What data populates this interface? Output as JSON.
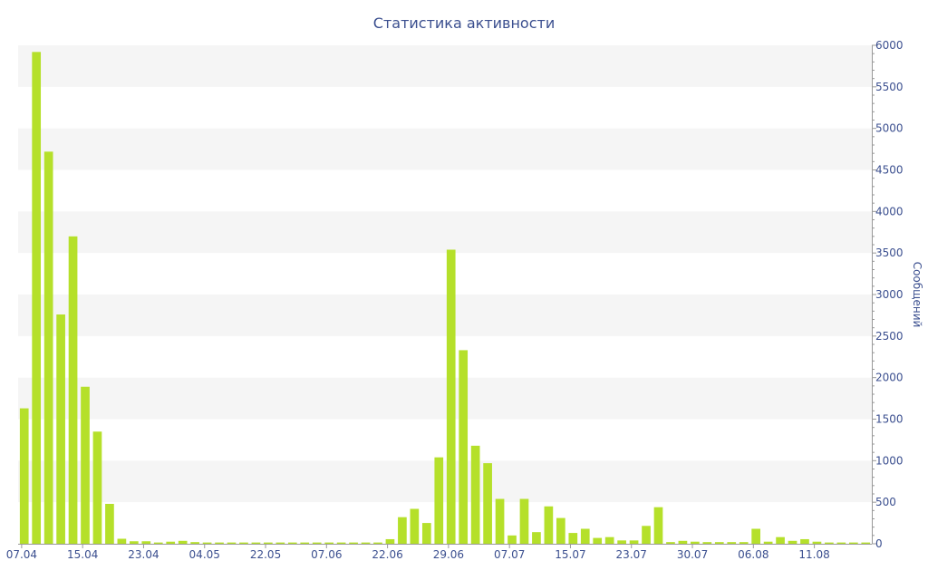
{
  "chart_data": {
    "type": "bar",
    "title": "Статистика активности",
    "xlabel": "",
    "ylabel": "Сообщений",
    "y_axis_position": "right",
    "ylim": [
      0,
      6000
    ],
    "y_ticks": [
      0,
      500,
      1000,
      1500,
      2000,
      2500,
      3000,
      3500,
      4000,
      4500,
      5000,
      5500,
      6000
    ],
    "grid": "alternating horizontal bands",
    "x_tick_labels": [
      {
        "label": "07.04",
        "index": 0
      },
      {
        "label": "15.04",
        "index": 5
      },
      {
        "label": "23.04",
        "index": 10
      },
      {
        "label": "04.05",
        "index": 15
      },
      {
        "label": "22.05",
        "index": 20
      },
      {
        "label": "07.06",
        "index": 25
      },
      {
        "label": "22.06",
        "index": 30
      },
      {
        "label": "29.06",
        "index": 35
      },
      {
        "label": "07.07",
        "index": 40
      },
      {
        "label": "15.07",
        "index": 45
      },
      {
        "label": "23.07",
        "index": 50
      },
      {
        "label": "30.07",
        "index": 55
      },
      {
        "label": "06.08",
        "index": 60
      },
      {
        "label": "11.08",
        "index": 65
      }
    ],
    "values": [
      1630,
      5920,
      4720,
      2760,
      3700,
      1890,
      1350,
      480,
      60,
      30,
      30,
      15,
      25,
      35,
      20,
      15,
      15,
      15,
      15,
      15,
      15,
      15,
      15,
      15,
      15,
      15,
      15,
      15,
      15,
      15,
      55,
      320,
      420,
      250,
      1040,
      3540,
      2330,
      1180,
      970,
      540,
      100,
      540,
      140,
      450,
      310,
      130,
      180,
      70,
      80,
      40,
      40,
      215,
      440,
      20,
      35,
      25,
      20,
      20,
      20,
      20,
      180,
      25,
      80,
      35,
      55,
      25,
      15,
      15,
      15,
      15
    ],
    "colors": {
      "bar": "#b5e02a",
      "text": "#3b4f8f",
      "band": "#f5f5f5",
      "axis": "#999999"
    }
  }
}
